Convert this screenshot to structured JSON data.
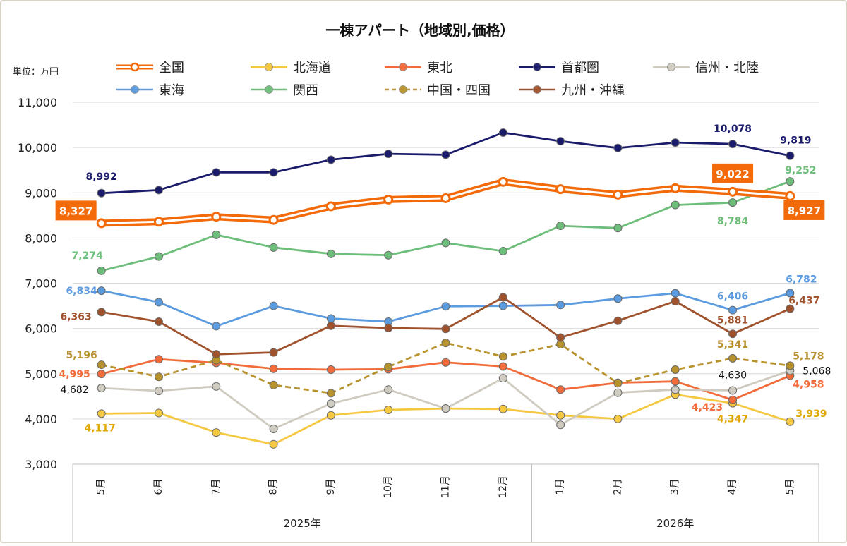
{
  "chart_data": {
    "type": "line",
    "title": "一棟アパート（地域別,価格）",
    "unit_label": "単位：万円",
    "ylim": [
      3000,
      11000
    ],
    "y_ticks": [
      "3,000",
      "4,000",
      "5,000",
      "6,000",
      "7,000",
      "8,000",
      "9,000",
      "10,000",
      "11,000"
    ],
    "y_tick_values": [
      3000,
      4000,
      5000,
      6000,
      7000,
      8000,
      9000,
      10000,
      11000
    ],
    "grid": true,
    "legend_position": "top",
    "categories": [
      "5月",
      "6月",
      "7月",
      "8月",
      "9月",
      "10月",
      "11月",
      "12月",
      "1月",
      "2月",
      "3月",
      "4月",
      "5月"
    ],
    "year_groups": [
      {
        "label": "2025年",
        "span": 8
      },
      {
        "label": "2026年",
        "span": 5
      }
    ],
    "series": [
      {
        "name": "全国",
        "color": "#F26A0A",
        "style": "double",
        "values": [
          8327,
          8360,
          8470,
          8400,
          8700,
          8850,
          8880,
          9240,
          9080,
          8960,
          9100,
          9022,
          8927
        ],
        "labels": [
          {
            "index": 0,
            "text": "8,327"
          },
          {
            "index": 11,
            "text": "9,022"
          },
          {
            "index": 12,
            "text": "8,927"
          }
        ]
      },
      {
        "name": "北海道",
        "color": "#F5C842",
        "style": "solid",
        "values": [
          4117,
          4130,
          3700,
          3440,
          4080,
          4200,
          4230,
          4220,
          4080,
          4000,
          4540,
          4347,
          3939
        ],
        "labels": [
          {
            "index": 0,
            "text": "4,117"
          },
          {
            "index": 11,
            "text": "4,347"
          },
          {
            "index": 12,
            "text": "3,939"
          }
        ]
      },
      {
        "name": "東北",
        "color": "#F26B3A",
        "style": "solid",
        "values": [
          4995,
          5320,
          5240,
          5110,
          5090,
          5100,
          5250,
          5160,
          4650,
          4800,
          4830,
          4423,
          4958
        ],
        "labels": [
          {
            "index": 0,
            "text": "4,995"
          },
          {
            "index": 11,
            "text": "4,423"
          },
          {
            "index": 12,
            "text": "4,958"
          }
        ]
      },
      {
        "name": "首都圏",
        "color": "#1B1B6B",
        "style": "solid",
        "values": [
          8992,
          9060,
          9450,
          9450,
          9730,
          9860,
          9840,
          10330,
          10140,
          9990,
          10110,
          10078,
          9819
        ],
        "labels": [
          {
            "index": 0,
            "text": "8,992"
          },
          {
            "index": 11,
            "text": "10,078"
          },
          {
            "index": 12,
            "text": "9,819"
          }
        ]
      },
      {
        "name": "信州・北陸",
        "color": "#CFCBC0",
        "style": "solid",
        "values": [
          4682,
          4620,
          4720,
          3780,
          4340,
          4650,
          4230,
          4900,
          3870,
          4580,
          4650,
          4630,
          5068
        ],
        "labels": [
          {
            "index": 0,
            "text": "4,682"
          },
          {
            "index": 11,
            "text": "4,630"
          },
          {
            "index": 12,
            "text": "5,068"
          }
        ]
      },
      {
        "name": "東海",
        "color": "#5B9BE0",
        "style": "solid",
        "values": [
          6834,
          6580,
          6050,
          6500,
          6220,
          6150,
          6490,
          6500,
          6520,
          6660,
          6780,
          6406,
          6782
        ],
        "labels": [
          {
            "index": 0,
            "text": "6,834"
          },
          {
            "index": 11,
            "text": "6,406"
          },
          {
            "index": 12,
            "text": "6,782"
          }
        ]
      },
      {
        "name": "関西",
        "color": "#6DBE7A",
        "style": "solid",
        "values": [
          7274,
          7590,
          8070,
          7790,
          7650,
          7620,
          7890,
          7710,
          8270,
          8220,
          8730,
          8784,
          9252
        ],
        "labels": [
          {
            "index": 0,
            "text": "7,274"
          },
          {
            "index": 11,
            "text": "8,784"
          },
          {
            "index": 12,
            "text": "9,252"
          }
        ]
      },
      {
        "name": "中国・四国",
        "color": "#B8922C",
        "style": "dashed",
        "values": [
          5196,
          4930,
          5300,
          4750,
          4570,
          5150,
          5680,
          5380,
          5650,
          4790,
          5090,
          5341,
          5178
        ],
        "labels": [
          {
            "index": 0,
            "text": "5,196"
          },
          {
            "index": 11,
            "text": "5,341"
          },
          {
            "index": 12,
            "text": "5,178"
          }
        ]
      },
      {
        "name": "九州・沖縄",
        "color": "#A0522D",
        "style": "solid",
        "values": [
          6363,
          6150,
          5430,
          5470,
          6060,
          6010,
          5990,
          6690,
          5800,
          6170,
          6600,
          5881,
          6437
        ],
        "labels": [
          {
            "index": 0,
            "text": "6,363"
          },
          {
            "index": 11,
            "text": "5,881"
          },
          {
            "index": 12,
            "text": "6,437"
          }
        ]
      }
    ]
  }
}
